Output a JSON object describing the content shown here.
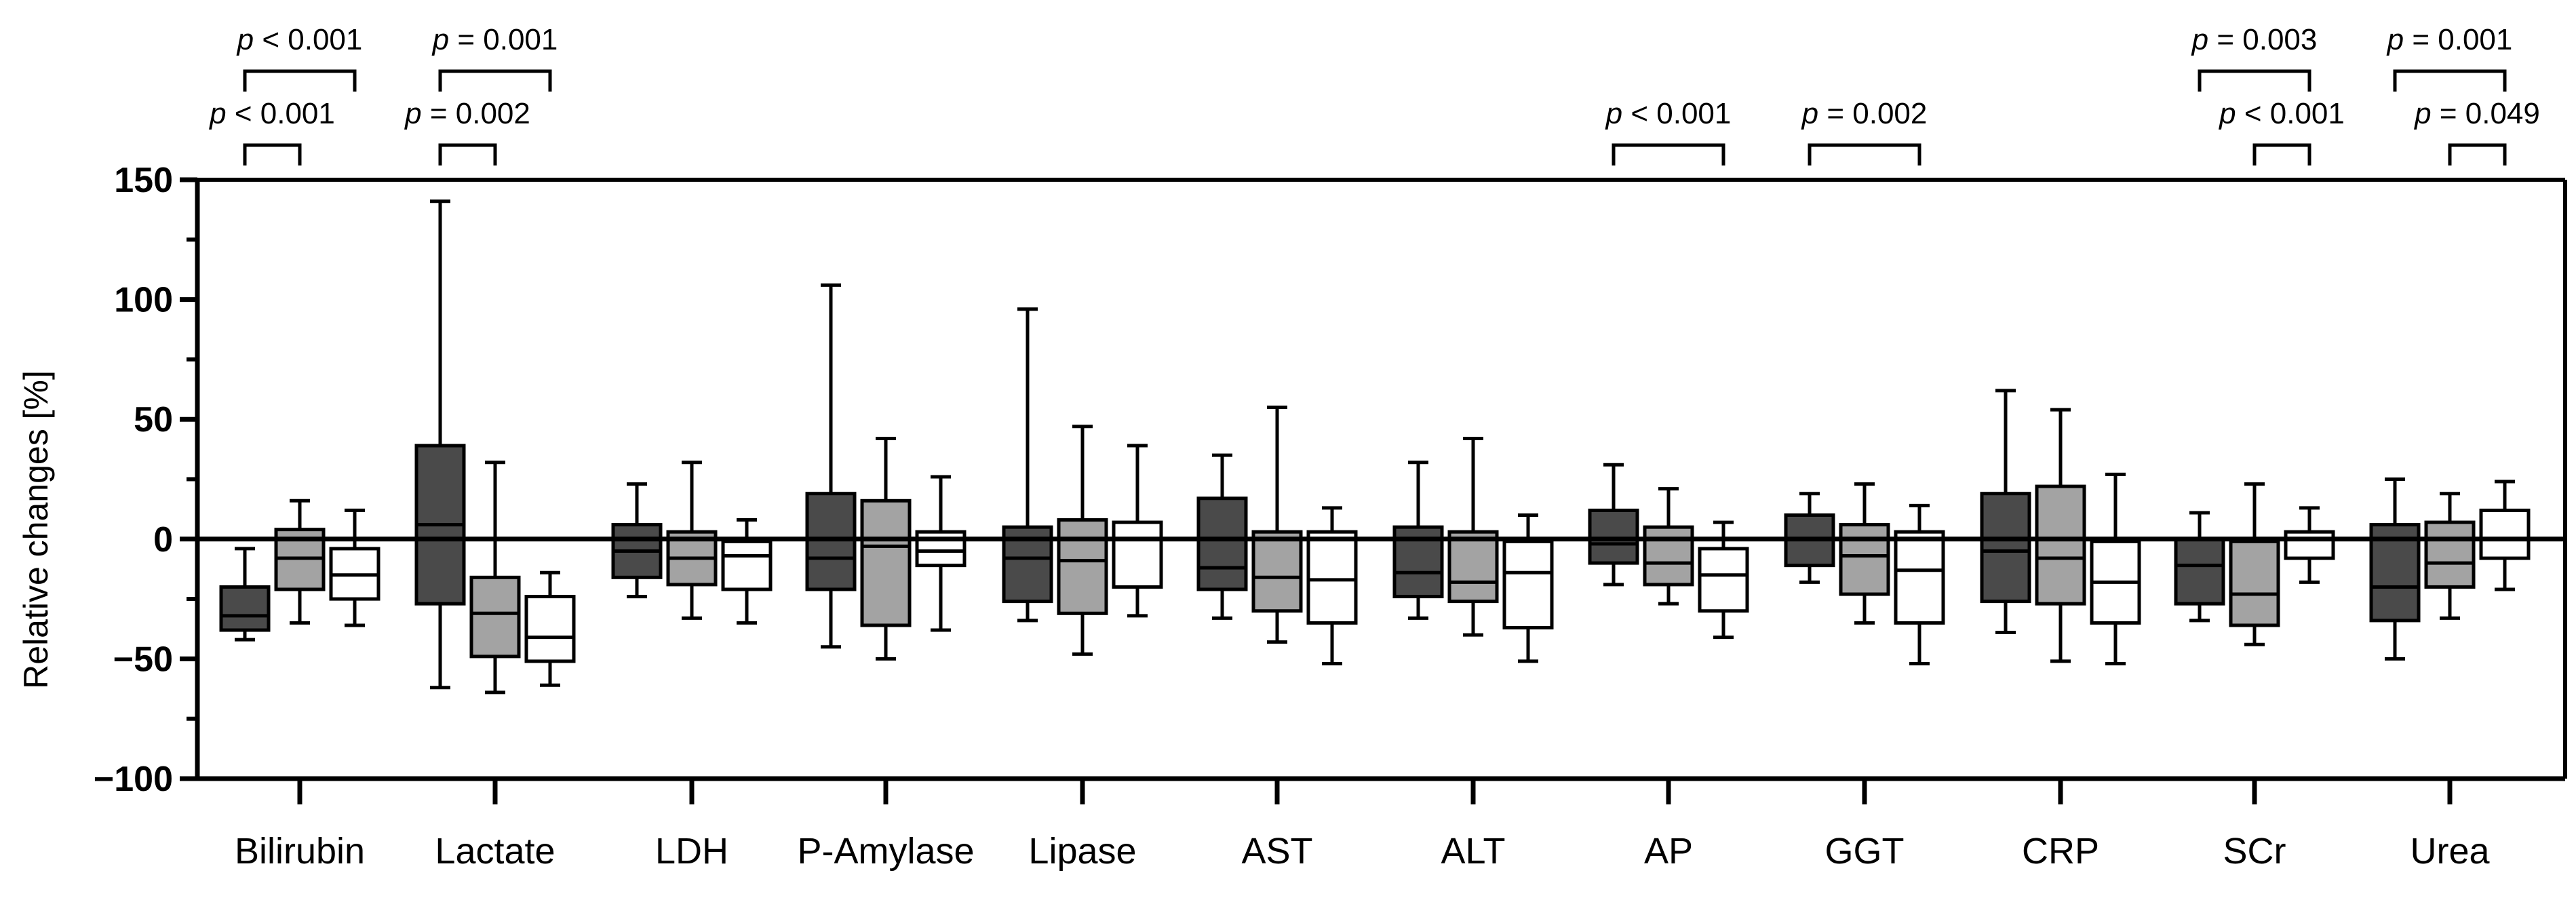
{
  "chart_data": {
    "type": "box",
    "title": "",
    "ylabel": "Relative changes [%]",
    "xlabel": "",
    "ylim": [
      -100,
      150
    ],
    "yticks": [
      -100,
      -50,
      0,
      50,
      100,
      150
    ],
    "ytick_labels": [
      "−100",
      "−50",
      "0",
      "50",
      "100",
      "150"
    ],
    "categories": [
      "Bilirubin",
      "Lactate",
      "LDH",
      "P-Amylase",
      "Lipase",
      "AST",
      "ALT",
      "AP",
      "GGT",
      "CRP",
      "SCr",
      "Urea"
    ],
    "group_colors": [
      "#4a4a4a",
      "#a3a3a3",
      "#ffffff"
    ],
    "series": [
      {
        "name": "group-1",
        "boxes": [
          {
            "whisker_low": -42,
            "q1": -38,
            "median": -32,
            "q3": -20,
            "whisker_high": -4
          },
          {
            "whisker_low": -62,
            "q1": -27,
            "median": 6,
            "q3": 39,
            "whisker_high": 141
          },
          {
            "whisker_low": -24,
            "q1": -16,
            "median": -5,
            "q3": 6,
            "whisker_high": 23
          },
          {
            "whisker_low": -45,
            "q1": -21,
            "median": -8,
            "q3": 19,
            "whisker_high": 106
          },
          {
            "whisker_low": -34,
            "q1": -26,
            "median": -8,
            "q3": 5,
            "whisker_high": 96
          },
          {
            "whisker_low": -33,
            "q1": -21,
            "median": -12,
            "q3": 17,
            "whisker_high": 35
          },
          {
            "whisker_low": -33,
            "q1": -24,
            "median": -14,
            "q3": 5,
            "whisker_high": 32
          },
          {
            "whisker_low": -19,
            "q1": -10,
            "median": -2,
            "q3": 12,
            "whisker_high": 31
          },
          {
            "whisker_low": -18,
            "q1": -11,
            "median": 0,
            "q3": 10,
            "whisker_high": 19
          },
          {
            "whisker_low": -39,
            "q1": -26,
            "median": -5,
            "q3": 19,
            "whisker_high": 62
          },
          {
            "whisker_low": -34,
            "q1": -27,
            "median": -11,
            "q3": 0,
            "whisker_high": 11
          },
          {
            "whisker_low": -50,
            "q1": -34,
            "median": -20,
            "q3": 6,
            "whisker_high": 25
          }
        ]
      },
      {
        "name": "group-2",
        "boxes": [
          {
            "whisker_low": -35,
            "q1": -21,
            "median": -8,
            "q3": 4,
            "whisker_high": 16
          },
          {
            "whisker_low": -64,
            "q1": -49,
            "median": -31,
            "q3": -16,
            "whisker_high": 32
          },
          {
            "whisker_low": -33,
            "q1": -19,
            "median": -8,
            "q3": 3,
            "whisker_high": 32
          },
          {
            "whisker_low": -50,
            "q1": -36,
            "median": -3,
            "q3": 16,
            "whisker_high": 42
          },
          {
            "whisker_low": -48,
            "q1": -31,
            "median": -9,
            "q3": 8,
            "whisker_high": 47
          },
          {
            "whisker_low": -43,
            "q1": -30,
            "median": -16,
            "q3": 3,
            "whisker_high": 55
          },
          {
            "whisker_low": -40,
            "q1": -26,
            "median": -18,
            "q3": 3,
            "whisker_high": 42
          },
          {
            "whisker_low": -27,
            "q1": -19,
            "median": -10,
            "q3": 5,
            "whisker_high": 21
          },
          {
            "whisker_low": -35,
            "q1": -23,
            "median": -7,
            "q3": 6,
            "whisker_high": 23
          },
          {
            "whisker_low": -51,
            "q1": -27,
            "median": -8,
            "q3": 22,
            "whisker_high": 54
          },
          {
            "whisker_low": -44,
            "q1": -36,
            "median": -23,
            "q3": -1,
            "whisker_high": 23
          },
          {
            "whisker_low": -33,
            "q1": -20,
            "median": -10,
            "q3": 7,
            "whisker_high": 19
          }
        ]
      },
      {
        "name": "group-3",
        "boxes": [
          {
            "whisker_low": -36,
            "q1": -25,
            "median": -15,
            "q3": -4,
            "whisker_high": 12
          },
          {
            "whisker_low": -61,
            "q1": -51,
            "median": -41,
            "q3": -24,
            "whisker_high": -14
          },
          {
            "whisker_low": -35,
            "q1": -21,
            "median": -7,
            "q3": -1,
            "whisker_high": 8
          },
          {
            "whisker_low": -38,
            "q1": -11,
            "median": -5,
            "q3": 3,
            "whisker_high": 26
          },
          {
            "whisker_low": -32,
            "q1": -20,
            "median": 0,
            "q3": 7,
            "whisker_high": 39
          },
          {
            "whisker_low": -52,
            "q1": -35,
            "median": -17,
            "q3": 3,
            "whisker_high": 13
          },
          {
            "whisker_low": -51,
            "q1": -37,
            "median": -14,
            "q3": -1,
            "whisker_high": 10
          },
          {
            "whisker_low": -41,
            "q1": -30,
            "median": -15,
            "q3": -4,
            "whisker_high": 7
          },
          {
            "whisker_low": -52,
            "q1": -35,
            "median": -13,
            "q3": 3,
            "whisker_high": 14
          },
          {
            "whisker_low": -52,
            "q1": -35,
            "median": -18,
            "q3": -1,
            "whisker_high": 27
          },
          {
            "whisker_low": -18,
            "q1": -8,
            "median": 0,
            "q3": 3,
            "whisker_high": 13
          },
          {
            "whisker_low": -21,
            "q1": -8,
            "median": 0,
            "q3": 12,
            "whisker_high": 24
          }
        ]
      }
    ],
    "comparisons": [
      {
        "category": "Bilirubin",
        "from_group": 1,
        "to_group": 3,
        "level": 2,
        "label_p": "p",
        "label_rest": " < 0.001"
      },
      {
        "category": "Bilirubin",
        "from_group": 1,
        "to_group": 2,
        "level": 1,
        "label_p": "p",
        "label_rest": " < 0.001"
      },
      {
        "category": "Lactate",
        "from_group": 1,
        "to_group": 3,
        "level": 2,
        "label_p": "p",
        "label_rest": " = 0.001"
      },
      {
        "category": "Lactate",
        "from_group": 1,
        "to_group": 2,
        "level": 1,
        "label_p": "p",
        "label_rest": " = 0.002"
      },
      {
        "category": "AP",
        "from_group": 1,
        "to_group": 3,
        "level": 1,
        "label_p": "p",
        "label_rest": " < 0.001"
      },
      {
        "category": "GGT",
        "from_group": 1,
        "to_group": 3,
        "level": 1,
        "label_p": "p",
        "label_rest": " = 0.002"
      },
      {
        "category": "SCr",
        "from_group": 1,
        "to_group": 3,
        "level": 2,
        "label_p": "p",
        "label_rest": " = 0.003"
      },
      {
        "category": "SCr",
        "from_group": 2,
        "to_group": 3,
        "level": 1,
        "label_p": "p",
        "label_rest": " < 0.001"
      },
      {
        "category": "Urea",
        "from_group": 1,
        "to_group": 3,
        "level": 2,
        "label_p": "p",
        "label_rest": " = 0.001"
      },
      {
        "category": "Urea",
        "from_group": 2,
        "to_group": 3,
        "level": 1,
        "label_p": "p",
        "label_rest": " = 0.049"
      }
    ]
  }
}
